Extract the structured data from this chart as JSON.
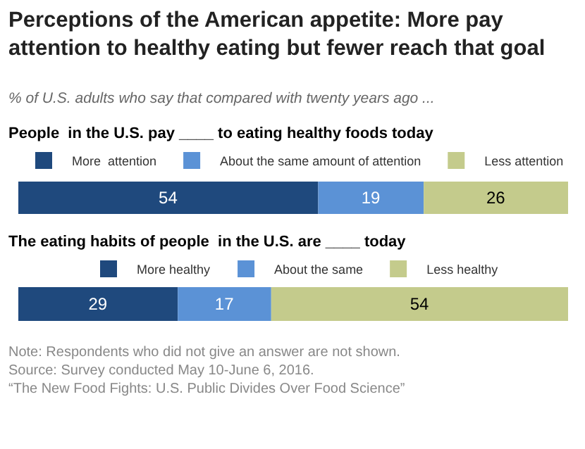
{
  "chart_data": [
    {
      "type": "bar",
      "orientation": "horizontal",
      "stacked": true,
      "title": "Perceptions of the American appetite: More pay\nattention to healthy eating but fewer reach that goal",
      "subtitle": "% of U.S. adults who say that compared with twenty years ago ...",
      "annotations": [
        "People  in the U.S. pay ____ to eating healthy foods today"
      ],
      "categories": [
        null
      ],
      "legend": "top",
      "data_labels": true,
      "tick_labels": false,
      "series": [
        {
          "name": "More  attention",
          "color": "#1f497d",
          "values": [
            54
          ]
        },
        {
          "name": "About the same amount of attention",
          "color": "#5b92d6",
          "values": [
            19
          ]
        },
        {
          "name": "Less attention",
          "color": "#c4cb8c",
          "values": [
            26
          ]
        }
      ]
    },
    {
      "type": "bar",
      "orientation": "horizontal",
      "stacked": true,
      "annotations": [
        "The eating habits of people  in the U.S. are ____ today",
        "Note: Respondents who did not give an answer are not shown.",
        "Source: Survey conducted May 10-June 6, 2016.",
        "“The New Food Fights: U.S. Public Divides Over Food Science”"
      ],
      "categories": [
        null
      ],
      "legend": "top",
      "data_labels": true,
      "tick_labels": false,
      "series": [
        {
          "name": "More healthy",
          "color": "#1f497d",
          "values": [
            29
          ]
        },
        {
          "name": "About the same",
          "color": "#5b92d6",
          "values": [
            17
          ]
        },
        {
          "name": "Less healthy",
          "color": "#c4cb8c",
          "values": [
            54
          ]
        }
      ]
    }
  ]
}
